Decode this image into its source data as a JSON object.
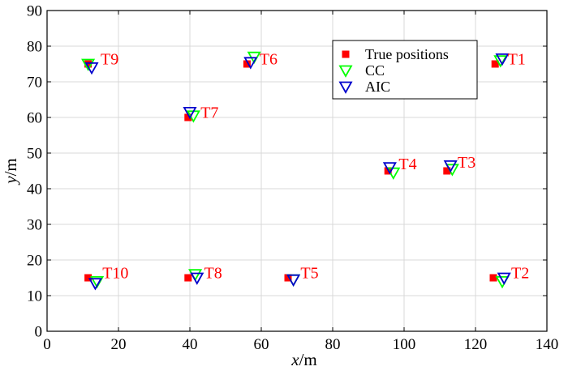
{
  "chart_data": {
    "type": "scatter",
    "title": "",
    "xlabel": {
      "var": "x",
      "unit": "/m"
    },
    "ylabel": {
      "var": "y",
      "unit": "/m"
    },
    "xlim": [
      0,
      140
    ],
    "ylim": [
      0,
      90
    ],
    "xticks": [
      0,
      20,
      40,
      60,
      80,
      100,
      120,
      140
    ],
    "yticks": [
      0,
      10,
      20,
      30,
      40,
      50,
      60,
      70,
      80,
      90
    ],
    "grid": true,
    "legend_position": "top-right",
    "series": [
      {
        "name": "True positions",
        "marker": "square",
        "color": "#ff0000",
        "points": [
          {
            "label": "T1",
            "x": 125.5,
            "y": 75
          },
          {
            "label": "T2",
            "x": 125,
            "y": 15
          },
          {
            "label": "T3",
            "x": 112,
            "y": 45
          },
          {
            "label": "T4",
            "x": 95.5,
            "y": 45
          },
          {
            "label": "T5",
            "x": 67.5,
            "y": 15
          },
          {
            "label": "T6",
            "x": 56,
            "y": 75
          },
          {
            "label": "T7",
            "x": 39.5,
            "y": 60
          },
          {
            "label": "T8",
            "x": 39.5,
            "y": 15
          },
          {
            "label": "T9",
            "x": 11.5,
            "y": 75
          },
          {
            "label": "T10",
            "x": 11.5,
            "y": 15
          }
        ]
      },
      {
        "name": "CC",
        "marker": "triangle-down",
        "color": "#00ff00",
        "points": [
          {
            "label": "T1",
            "x": 127,
            "y": 76
          },
          {
            "label": "T2",
            "x": 127.5,
            "y": 14
          },
          {
            "label": "T3",
            "x": 113.5,
            "y": 45.5
          },
          {
            "label": "T4",
            "x": 97,
            "y": 44.5
          },
          {
            "label": "T5",
            "x": 69,
            "y": 14.5
          },
          {
            "label": "T6",
            "x": 58,
            "y": 77
          },
          {
            "label": "T7",
            "x": 41,
            "y": 60.5
          },
          {
            "label": "T8",
            "x": 41.5,
            "y": 16
          },
          {
            "label": "T9",
            "x": 11.5,
            "y": 75
          },
          {
            "label": "T10",
            "x": 14,
            "y": 14
          }
        ]
      },
      {
        "name": "AIC",
        "marker": "triangle-down",
        "color": "#0000cc",
        "points": [
          {
            "label": "T1",
            "x": 127.5,
            "y": 76.5
          },
          {
            "label": "T2",
            "x": 128,
            "y": 15
          },
          {
            "label": "T3",
            "x": 113,
            "y": 46.5
          },
          {
            "label": "T4",
            "x": 96,
            "y": 46
          },
          {
            "label": "T5",
            "x": 69,
            "y": 14.5
          },
          {
            "label": "T6",
            "x": 57,
            "y": 75.5
          },
          {
            "label": "T7",
            "x": 40,
            "y": 61.5
          },
          {
            "label": "T8",
            "x": 42,
            "y": 15
          },
          {
            "label": "T9",
            "x": 12.5,
            "y": 74
          },
          {
            "label": "T10",
            "x": 13.5,
            "y": 13.5
          }
        ]
      }
    ],
    "annotations": [
      {
        "text": "T1",
        "x": 129,
        "y": 76.5
      },
      {
        "text": "T2",
        "x": 130,
        "y": 16.5
      },
      {
        "text": "T3",
        "x": 115,
        "y": 47.5
      },
      {
        "text": "T4",
        "x": 98.5,
        "y": 47
      },
      {
        "text": "T5",
        "x": 71,
        "y": 16.5
      },
      {
        "text": "T6",
        "x": 59.5,
        "y": 76.5
      },
      {
        "text": "T7",
        "x": 43,
        "y": 61.5
      },
      {
        "text": "T8",
        "x": 44,
        "y": 16.5
      },
      {
        "text": "T9",
        "x": 15,
        "y": 76.5
      },
      {
        "text": "T10",
        "x": 15.5,
        "y": 16.5
      }
    ],
    "annotation_color": "#ff0000"
  }
}
